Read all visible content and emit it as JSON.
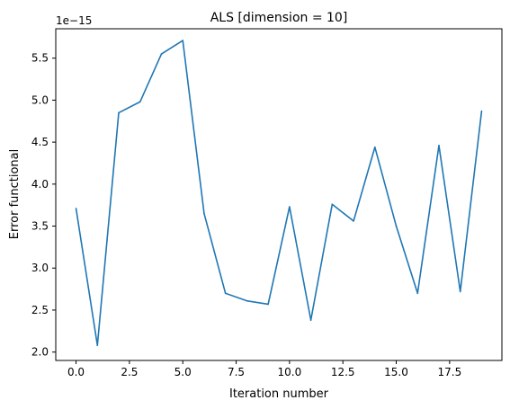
{
  "chart_data": {
    "type": "line",
    "title": "ALS [dimension = 10]",
    "xlabel": "Iteration number",
    "ylabel": "Error functional",
    "offset_label": "1e−15",
    "xlim": [
      -0.95,
      19.95
    ],
    "ylim": [
      1.9,
      5.85
    ],
    "grid": false,
    "xticks": [
      0.0,
      2.5,
      5.0,
      7.5,
      10.0,
      12.5,
      15.0,
      17.5
    ],
    "xtick_labels": [
      "0.0",
      "2.5",
      "5.0",
      "7.5",
      "10.0",
      "12.5",
      "15.0",
      "17.5"
    ],
    "yticks": [
      2.0,
      2.5,
      3.0,
      3.5,
      4.0,
      4.5,
      5.0,
      5.5
    ],
    "ytick_labels": [
      "2.0",
      "2.5",
      "3.0",
      "3.5",
      "4.0",
      "4.5",
      "5.0",
      "5.5"
    ],
    "series": [
      {
        "color": "#1f77b4",
        "x": [
          0,
          1,
          2,
          3,
          4,
          5,
          6,
          7,
          8,
          9,
          10,
          11,
          12,
          13,
          14,
          15,
          16,
          17,
          18,
          19
        ],
        "y": [
          3.71,
          2.08,
          4.85,
          4.98,
          5.55,
          5.71,
          3.65,
          2.7,
          2.61,
          2.57,
          3.73,
          2.38,
          3.76,
          3.56,
          4.44,
          3.5,
          2.7,
          4.46,
          2.72,
          4.87
        ]
      }
    ]
  }
}
